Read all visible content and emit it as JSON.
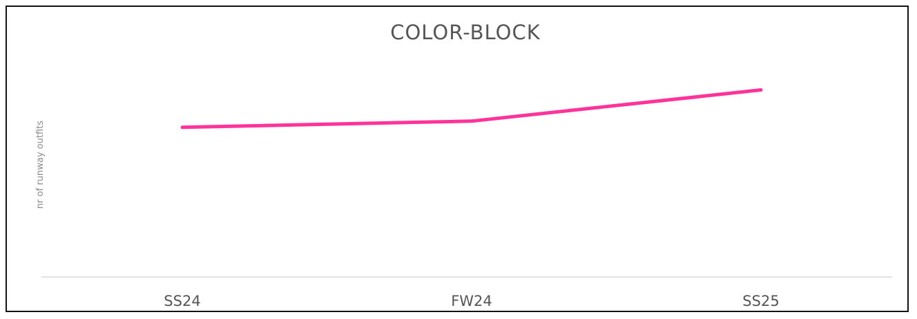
{
  "chart_data": {
    "type": "line",
    "title": "COLOR-BLOCK",
    "xlabel": "",
    "ylabel": "nr of runway outfits",
    "categories": [
      "SS24",
      "FW24",
      "SS25"
    ],
    "series": [
      {
        "values": [
          48,
          50,
          60
        ]
      }
    ],
    "ylim": [
      0,
      80
    ],
    "grid": false,
    "line_color": "#ff3399",
    "baseline_color": "#d8d8d8",
    "text_color": "#555555"
  }
}
